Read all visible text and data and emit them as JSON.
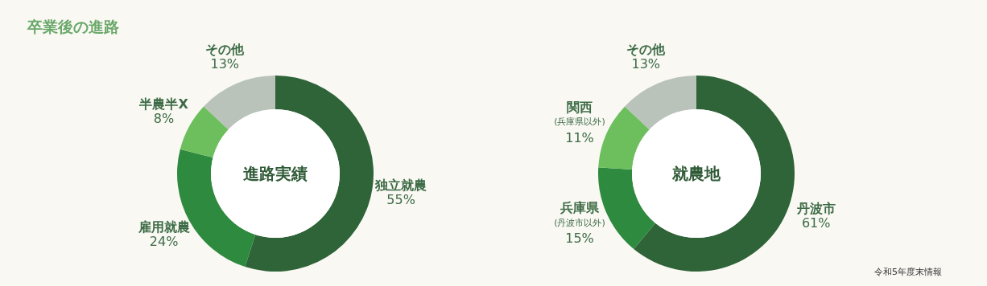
{
  "chart_data": [
    {
      "type": "donut",
      "title": "進路実績",
      "annotations": [
        "卒業後の進路"
      ],
      "categories": [
        "独立就農",
        "雇用就農",
        "半農半X",
        "その他"
      ],
      "values": [
        55,
        24,
        8,
        13
      ],
      "value_labels": [
        "55%",
        "24%",
        "8%",
        "13%"
      ],
      "colors": [
        "#2f6338",
        "#2e8a3e",
        "#6dbf5e",
        "#b9c3ba"
      ]
    },
    {
      "type": "donut",
      "title": "就農地",
      "annotations": [
        "令和5年度末情報"
      ],
      "categories": [
        "丹波市",
        "兵庫県\n(丹波市以外)",
        "関西\n(兵庫県以外)",
        "その他"
      ],
      "values": [
        61,
        15,
        11,
        13
      ],
      "value_labels": [
        "61%",
        "15%",
        "11%",
        "13%"
      ],
      "colors": [
        "#2f6338",
        "#2e8a3e",
        "#6dbf5e",
        "#b9c3ba"
      ]
    }
  ]
}
